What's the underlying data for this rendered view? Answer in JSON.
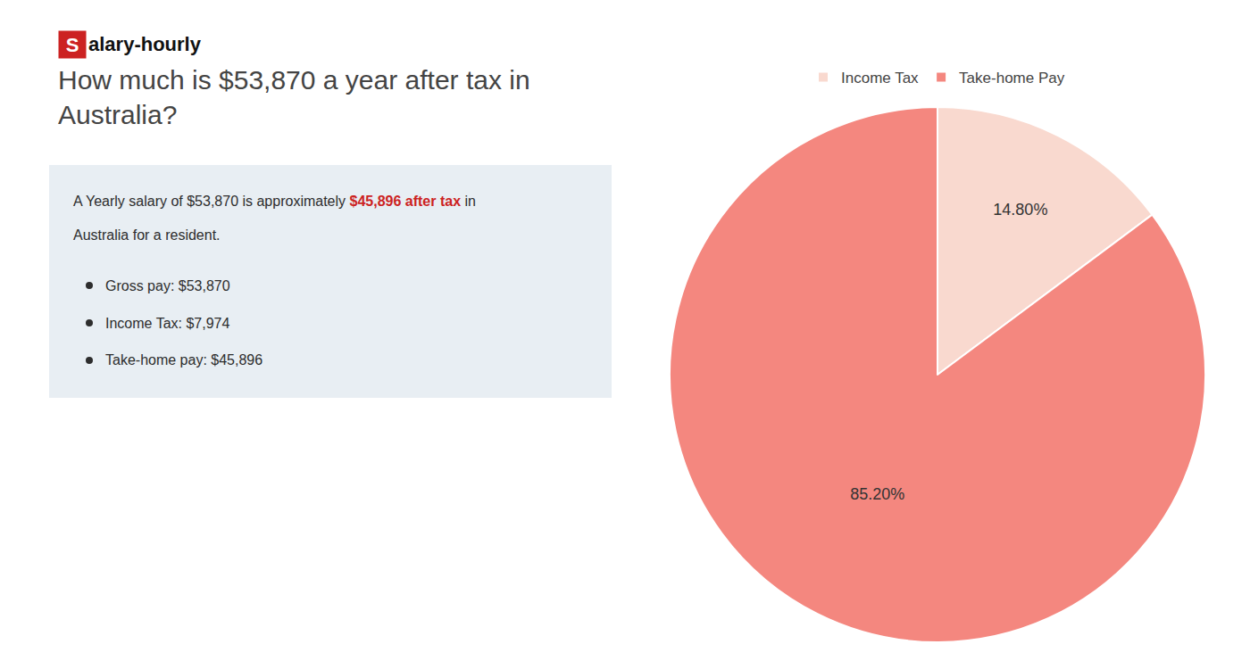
{
  "chart_data": {
    "type": "pie",
    "title": "How much is $53,870 a year after tax in\nAustralia?",
    "categories": [
      "Income Tax",
      "Take-home Pay"
    ],
    "values": [
      14.8,
      85.2
    ],
    "colors": [
      "#f9d9cf",
      "#f4877f"
    ],
    "data_labels": true,
    "value_labels": [
      "14.80%",
      "85.20%"
    ],
    "legend": "top",
    "logo": [
      {
        "text": "S",
        "color": "#ffffff",
        "bgcolor": "#cc2222"
      },
      {
        "text": "alary-hourly",
        "color": "#111111"
      }
    ],
    "info_box": {
      "bgcolor": "#e8eef3",
      "color": "#2d2d2d",
      "lines": [
        [
          {
            "text": "A Yearly salary of $53,870 is approximately "
          },
          {
            "text": "$45,896 after tax",
            "color": "#cc2222",
            "bold": true
          },
          {
            "text": " in"
          }
        ],
        [
          {
            "text": "Australia for a resident."
          }
        ]
      ],
      "bullets": [
        "Gross pay: $53,870",
        "Income Tax: $7,974",
        "Take-home pay: $45,896"
      ]
    }
  }
}
